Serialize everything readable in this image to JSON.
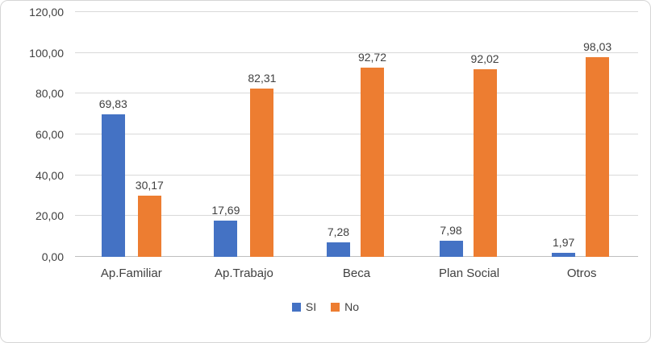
{
  "chart_data": {
    "type": "bar",
    "categories": [
      "Ap.Familiar",
      "Ap.Trabajo",
      "Beca",
      "Plan Social",
      "Otros"
    ],
    "series": [
      {
        "name": "SI",
        "color": "#4472C4",
        "values": [
          69.83,
          17.69,
          7.28,
          7.98,
          1.97
        ],
        "labels": [
          "69,83",
          "17,69",
          "7,28",
          "7,98",
          "1,97"
        ]
      },
      {
        "name": "No",
        "color": "#ED7D31",
        "values": [
          30.17,
          82.31,
          92.72,
          92.02,
          98.03
        ],
        "labels": [
          "30,17",
          "82,31",
          "92,72",
          "92,02",
          "98,03"
        ]
      }
    ],
    "title": "",
    "xlabel": "",
    "ylabel": "",
    "ylim": [
      0,
      120
    ],
    "y_ticks": [
      {
        "value": 0,
        "label": "0,00"
      },
      {
        "value": 20,
        "label": "20,00"
      },
      {
        "value": 40,
        "label": "40,00"
      },
      {
        "value": 60,
        "label": "60,00"
      },
      {
        "value": 80,
        "label": "80,00"
      },
      {
        "value": 100,
        "label": "100,00"
      },
      {
        "value": 120,
        "label": "120,00"
      }
    ],
    "grid": true,
    "legend_position": "bottom"
  },
  "colors": {
    "series_si": "#4472C4",
    "series_no": "#ED7D31",
    "gridline": "#D9D9D9",
    "axis_line": "#BFBFBF",
    "text": "#404040",
    "chart_border": "#D6D6D6"
  }
}
